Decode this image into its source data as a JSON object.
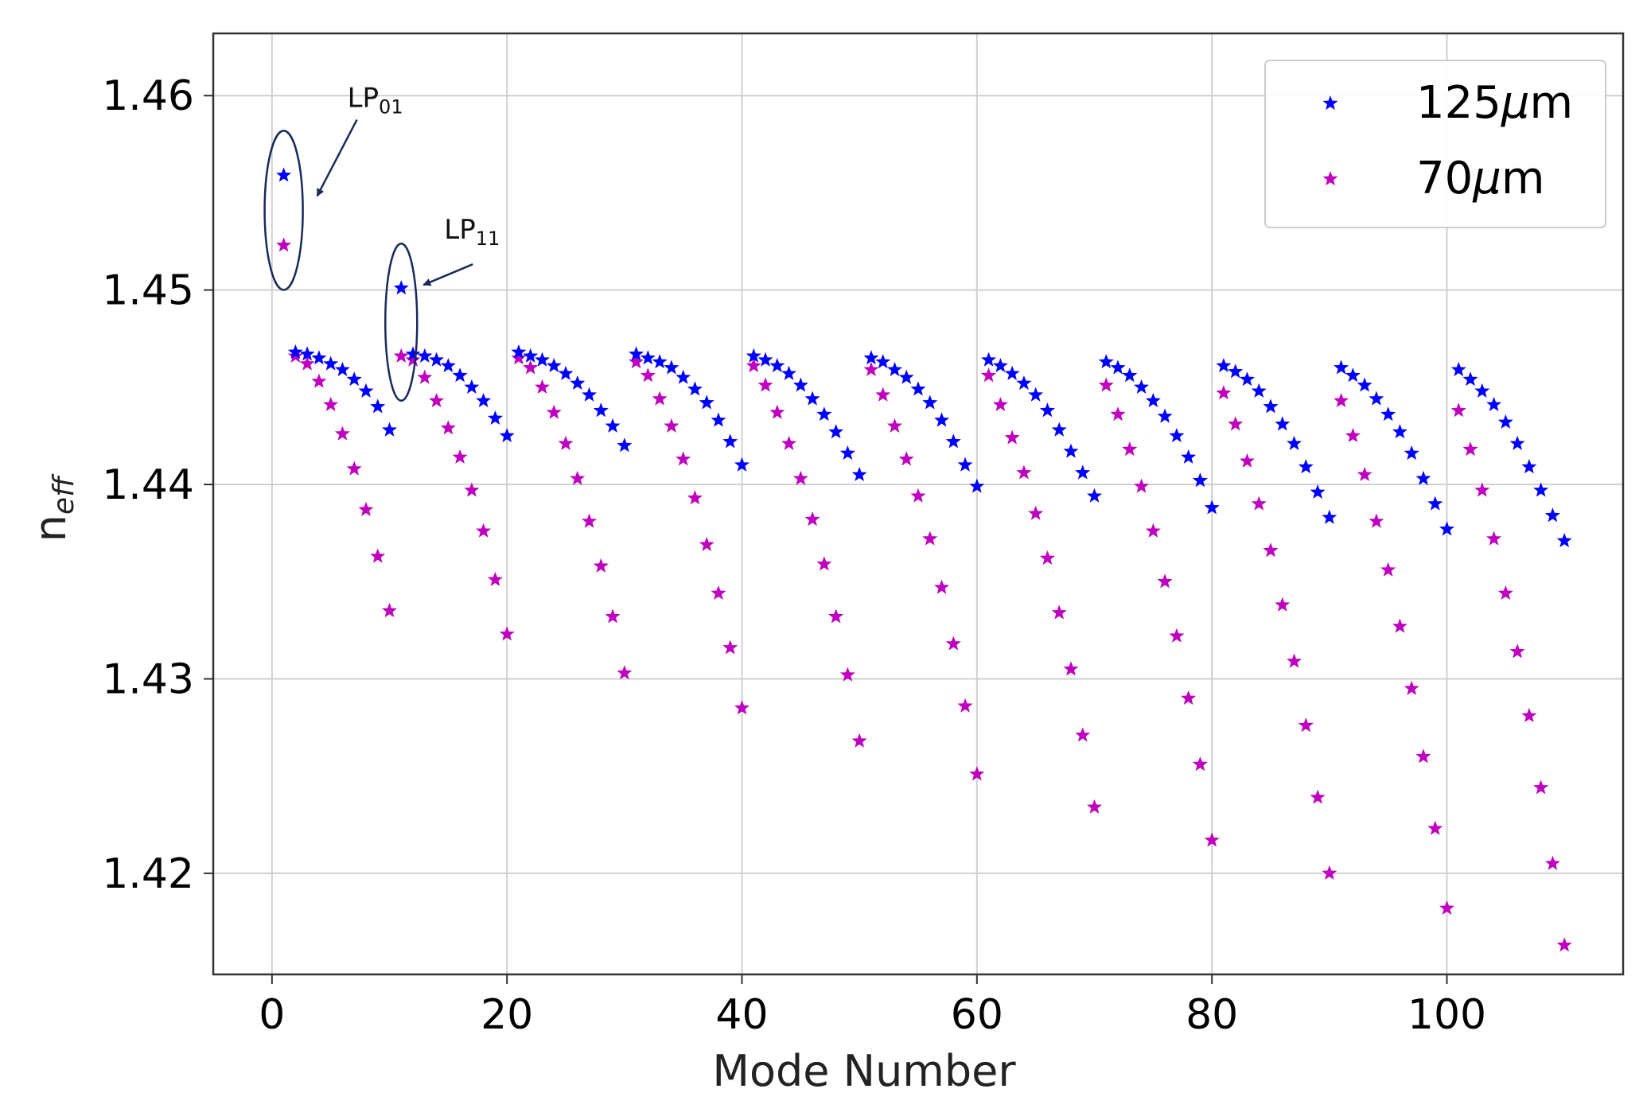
{
  "chart_data": {
    "type": "scatter",
    "title": "",
    "xlabel": "Mode Number",
    "ylabel_main": "n",
    "ylabel_sub": "eff",
    "xlim": [
      -5,
      115
    ],
    "ylim": [
      1.4148,
      1.4632
    ],
    "xticks": [
      0,
      20,
      40,
      60,
      80,
      100
    ],
    "yticks": [
      1.42,
      1.43,
      1.44,
      1.45,
      1.46
    ],
    "xtick_labels": [
      "0",
      "20",
      "40",
      "60",
      "80",
      "100"
    ],
    "ytick_labels": [
      "1.42",
      "1.43",
      "1.44",
      "1.45",
      "1.46"
    ],
    "grid": true,
    "legend_position": "top-right",
    "legend": [
      {
        "label_prefix": "125",
        "label_mu": "μ",
        "label_suffix": "m",
        "color": "#0000ff"
      },
      {
        "label_prefix": "70",
        "label_mu": "μ",
        "label_suffix": "m",
        "color": "#bf00bf"
      }
    ],
    "annotations": [
      {
        "main": "LP",
        "sub": "01",
        "target": "mode 1"
      },
      {
        "main": "LP",
        "sub": "11",
        "target": "mode 11"
      }
    ],
    "series": [
      {
        "name": "125μm",
        "color": "#0000ff",
        "x": [
          1,
          2,
          3,
          4,
          5,
          6,
          7,
          8,
          9,
          10,
          11,
          12,
          13,
          14,
          15,
          16,
          17,
          18,
          19,
          20,
          21,
          22,
          23,
          24,
          25,
          26,
          27,
          28,
          29,
          30,
          31,
          32,
          33,
          34,
          35,
          36,
          37,
          38,
          39,
          40,
          41,
          42,
          43,
          44,
          45,
          46,
          47,
          48,
          49,
          50,
          51,
          52,
          53,
          54,
          55,
          56,
          57,
          58,
          59,
          60,
          61,
          62,
          63,
          64,
          65,
          66,
          67,
          68,
          69,
          70,
          71,
          72,
          73,
          74,
          75,
          76,
          77,
          78,
          79,
          80,
          81,
          82,
          83,
          84,
          85,
          86,
          87,
          88,
          89,
          90,
          91,
          92,
          93,
          94,
          95,
          96,
          97,
          98,
          99,
          100,
          101,
          102,
          103,
          104,
          105,
          106,
          107,
          108,
          109,
          110
        ],
        "y": [
          1.4559,
          1.4468,
          1.4467,
          1.4465,
          1.4462,
          1.4459,
          1.4454,
          1.4448,
          1.444,
          1.4428,
          1.4501,
          1.4467,
          1.4466,
          1.4464,
          1.4461,
          1.4456,
          1.445,
          1.4443,
          1.4434,
          1.4425,
          1.4468,
          1.4466,
          1.4464,
          1.4461,
          1.4457,
          1.4452,
          1.4446,
          1.4438,
          1.443,
          1.442,
          1.4467,
          1.4465,
          1.4463,
          1.446,
          1.4455,
          1.4449,
          1.4442,
          1.4433,
          1.4422,
          1.441,
          1.4466,
          1.4464,
          1.4461,
          1.4457,
          1.4451,
          1.4444,
          1.4436,
          1.4427,
          1.4416,
          1.4405,
          1.4465,
          1.4463,
          1.4459,
          1.4455,
          1.4449,
          1.4442,
          1.4433,
          1.4422,
          1.441,
          1.4399,
          1.4464,
          1.4461,
          1.4457,
          1.4452,
          1.4446,
          1.4438,
          1.4428,
          1.4417,
          1.4406,
          1.4394,
          1.4463,
          1.446,
          1.4456,
          1.445,
          1.4443,
          1.4435,
          1.4425,
          1.4414,
          1.4402,
          1.4388,
          1.4461,
          1.4458,
          1.4454,
          1.4448,
          1.444,
          1.4431,
          1.4421,
          1.4409,
          1.4396,
          1.4383,
          1.446,
          1.4456,
          1.4451,
          1.4444,
          1.4436,
          1.4427,
          1.4416,
          1.4403,
          1.439,
          1.4377,
          1.4459,
          1.4454,
          1.4448,
          1.4441,
          1.4432,
          1.4421,
          1.4409,
          1.4397,
          1.4384,
          1.4371
        ]
      },
      {
        "name": "70μm",
        "color": "#bf00bf",
        "x": [
          1,
          2,
          3,
          4,
          5,
          6,
          7,
          8,
          9,
          10,
          11,
          12,
          13,
          14,
          15,
          16,
          17,
          18,
          19,
          20,
          21,
          22,
          23,
          24,
          25,
          26,
          27,
          28,
          29,
          30,
          31,
          32,
          33,
          34,
          35,
          36,
          37,
          38,
          39,
          40,
          41,
          42,
          43,
          44,
          45,
          46,
          47,
          48,
          49,
          50,
          51,
          52,
          53,
          54,
          55,
          56,
          57,
          58,
          59,
          60,
          61,
          62,
          63,
          64,
          65,
          66,
          67,
          68,
          69,
          70,
          71,
          72,
          73,
          74,
          75,
          76,
          77,
          78,
          79,
          80,
          81,
          82,
          83,
          84,
          85,
          86,
          87,
          88,
          89,
          90,
          91,
          92,
          93,
          94,
          95,
          96,
          97,
          98,
          99,
          100,
          101,
          102,
          103,
          104,
          105,
          106,
          107,
          108,
          109,
          110
        ],
        "y": [
          1.4523,
          1.4466,
          1.4462,
          1.4453,
          1.4441,
          1.4426,
          1.4408,
          1.4387,
          1.4363,
          1.4335,
          1.4466,
          1.4464,
          1.4455,
          1.4443,
          1.4429,
          1.4414,
          1.4397,
          1.4376,
          1.4351,
          1.4323,
          1.4465,
          1.446,
          1.445,
          1.4437,
          1.4421,
          1.4403,
          1.4381,
          1.4358,
          1.4332,
          1.4303,
          1.4463,
          1.4456,
          1.4444,
          1.443,
          1.4413,
          1.4393,
          1.4369,
          1.4344,
          1.4316,
          1.4285,
          1.4461,
          1.4451,
          1.4437,
          1.4421,
          1.4403,
          1.4382,
          1.4359,
          1.4332,
          1.4302,
          1.4268,
          1.4459,
          1.4446,
          1.443,
          1.4413,
          1.4394,
          1.4372,
          1.4347,
          1.4318,
          1.4286,
          1.4251,
          1.4456,
          1.4441,
          1.4424,
          1.4406,
          1.4385,
          1.4362,
          1.4334,
          1.4305,
          1.4271,
          1.4234,
          1.4451,
          1.4436,
          1.4418,
          1.4399,
          1.4376,
          1.435,
          1.4322,
          1.429,
          1.4256,
          1.4217,
          1.4447,
          1.4431,
          1.4412,
          1.439,
          1.4366,
          1.4338,
          1.4309,
          1.4276,
          1.4239,
          1.42,
          1.4443,
          1.4425,
          1.4405,
          1.4381,
          1.4356,
          1.4327,
          1.4295,
          1.426,
          1.4223,
          1.4182,
          1.4438,
          1.4418,
          1.4397,
          1.4372,
          1.4344,
          1.4314,
          1.4281,
          1.4244,
          1.4205,
          1.4163
        ]
      }
    ]
  }
}
